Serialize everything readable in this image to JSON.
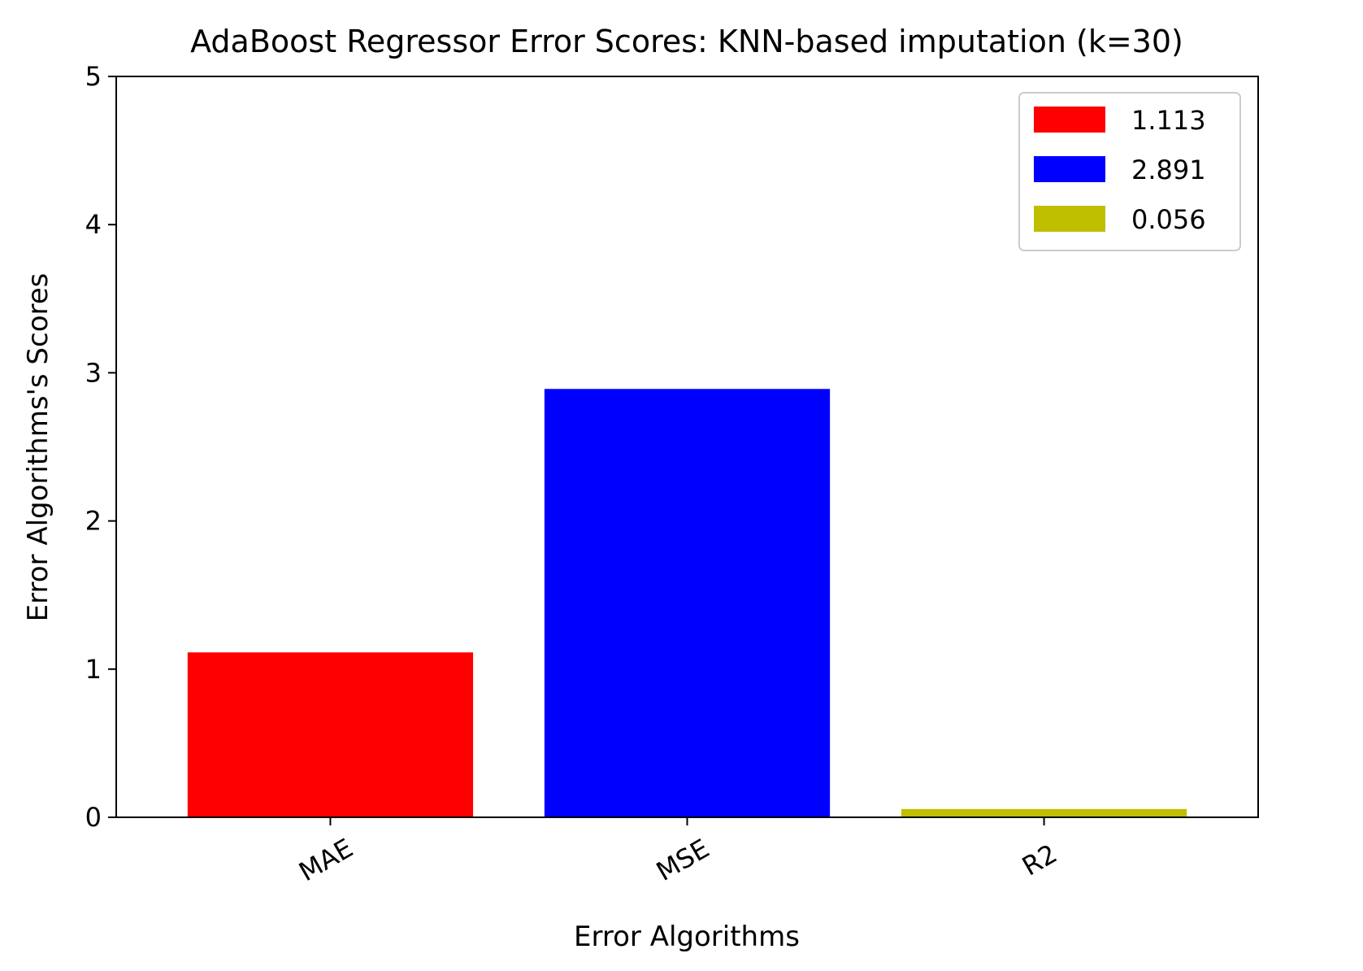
{
  "chart_data": {
    "type": "bar",
    "title": "AdaBoost Regressor Error Scores: KNN-based imputation (k=30)",
    "xlabel": "Error Algorithms",
    "ylabel": "Error Algorithms's Scores",
    "categories": [
      "MAE",
      "MSE",
      "R2"
    ],
    "values": [
      1.113,
      2.891,
      0.056
    ],
    "colors": [
      "#ff0000",
      "#0000ff",
      "#bfbf00"
    ],
    "ylim": [
      0,
      5
    ],
    "yticks": [
      "0",
      "1",
      "2",
      "3",
      "4",
      "5"
    ],
    "grid": false,
    "legend": {
      "placement": "top-right",
      "entries": [
        "1.113",
        "2.891",
        "0.056"
      ]
    }
  }
}
